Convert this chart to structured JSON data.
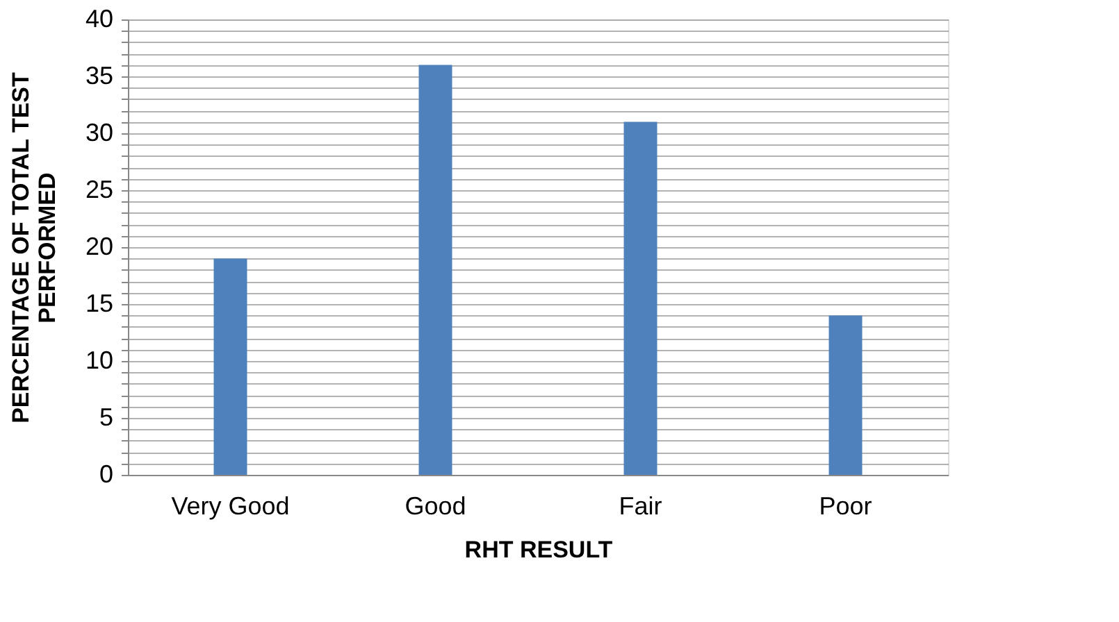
{
  "chart_data": {
    "type": "bar",
    "xlabel": "RHT RESULT",
    "ylabel": "PERCENTAGE OF TOTAL TEST PERFORMED",
    "categories": [
      "Very Good",
      "Good",
      "Fair",
      "Poor"
    ],
    "values": [
      19,
      36,
      31,
      14
    ],
    "color": "#4f81bd",
    "ylim": [
      0,
      40
    ],
    "yticks": [
      0,
      {
        "value": 1,
        "label": null
      },
      {
        "value": 2,
        "label": null
      },
      {
        "value": 3,
        "label": null
      },
      {
        "value": 4,
        "label": null
      },
      5,
      {
        "value": 6,
        "label": null
      },
      {
        "value": 7,
        "label": null
      },
      {
        "value": 8,
        "label": null
      },
      {
        "value": 9,
        "label": null
      },
      10,
      {
        "value": 11,
        "label": null
      },
      {
        "value": 12,
        "label": null
      },
      {
        "value": 13,
        "label": null
      },
      {
        "value": 14,
        "label": null
      },
      15,
      {
        "value": 16,
        "label": null
      },
      {
        "value": 17,
        "label": null
      },
      {
        "value": 18,
        "label": null
      },
      {
        "value": 19,
        "label": null
      },
      20,
      {
        "value": 21,
        "label": null
      },
      {
        "value": 22,
        "label": null
      },
      {
        "value": 23,
        "label": null
      },
      {
        "value": 24,
        "label": null
      },
      25,
      {
        "value": 26,
        "label": null
      },
      {
        "value": 27,
        "label": null
      },
      {
        "value": 28,
        "label": null
      },
      {
        "value": 29,
        "label": null
      },
      30,
      {
        "value": 31,
        "label": null
      },
      {
        "value": 32,
        "label": null
      },
      {
        "value": 33,
        "label": null
      },
      {
        "value": 34,
        "label": null
      },
      35,
      {
        "value": 36,
        "label": null
      },
      {
        "value": 37,
        "label": null
      },
      {
        "value": 38,
        "label": null
      },
      {
        "value": 39,
        "label": null
      },
      40
    ],
    "grid": "y"
  }
}
